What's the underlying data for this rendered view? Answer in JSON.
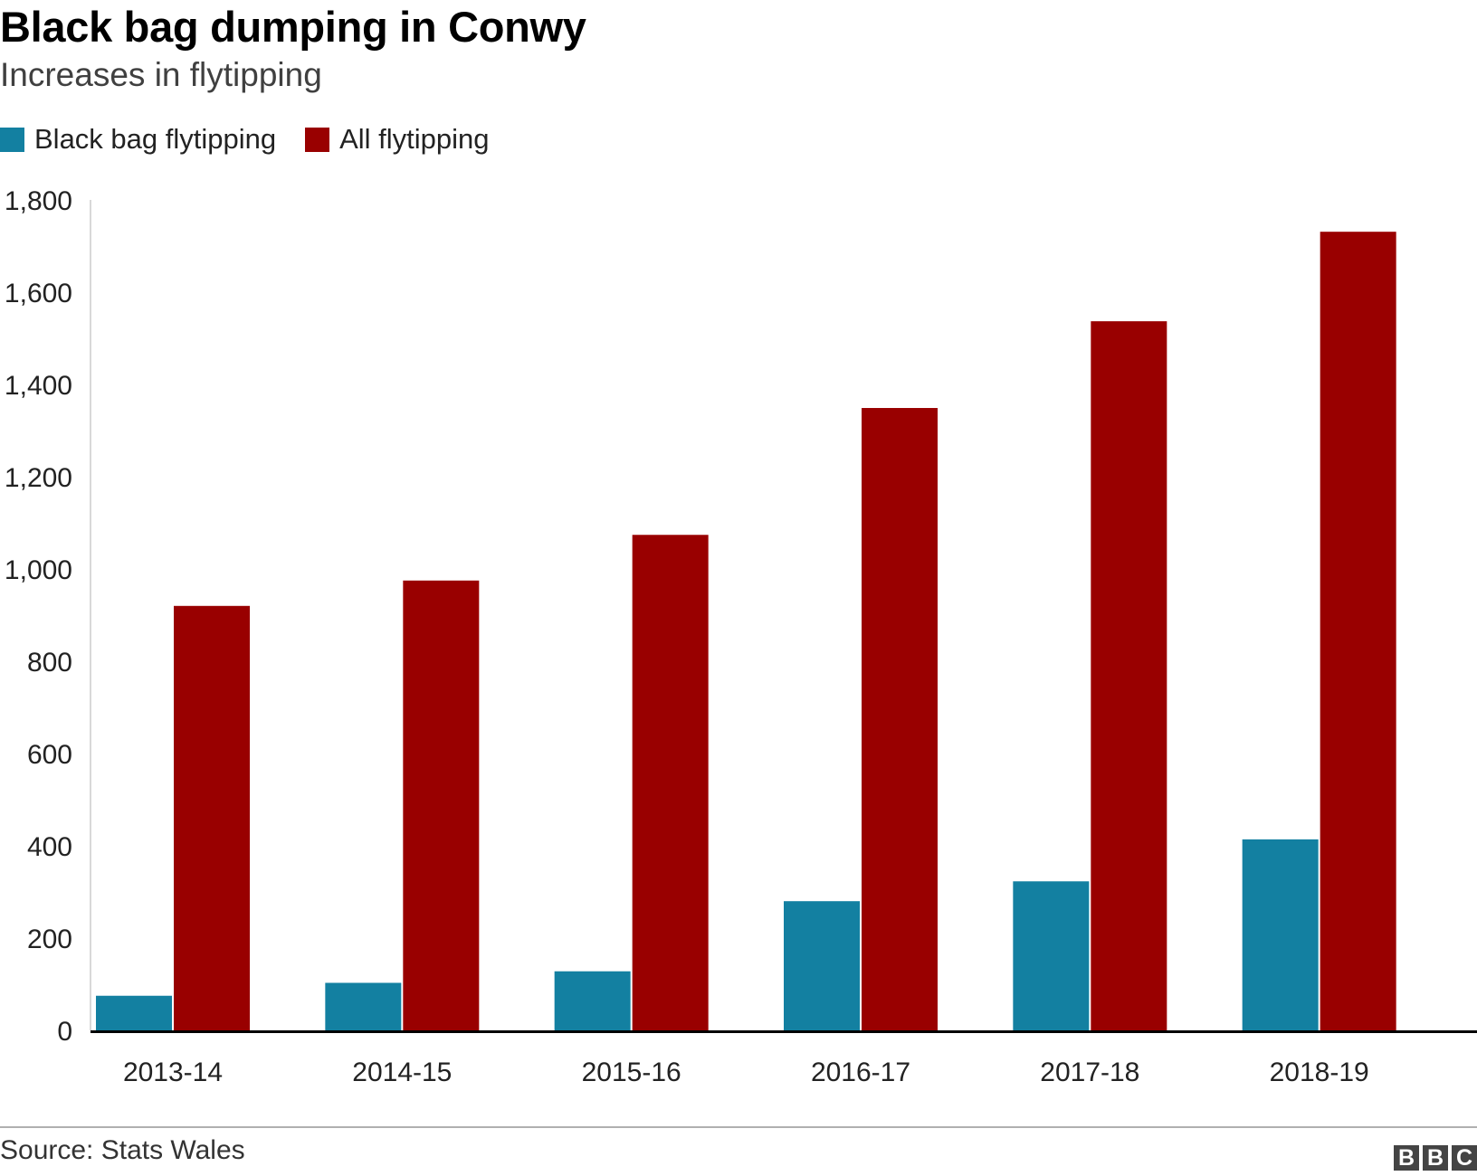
{
  "header": {
    "title": "Black bag dumping in Conwy",
    "subtitle": "Increases in flytipping"
  },
  "footer": {
    "source": "Source: Stats Wales",
    "logo_letters": [
      "B",
      "B",
      "C"
    ]
  },
  "colors": {
    "black_bag": "#1380A1",
    "all": "#990000",
    "axis": "#000000"
  },
  "chart_data": {
    "type": "bar",
    "categories": [
      "2013-14",
      "2014-15",
      "2015-16",
      "2016-17",
      "2017-18",
      "2018-19"
    ],
    "series": [
      {
        "name": "Black bag flytipping",
        "values": [
          75,
          103,
          128,
          280,
          323,
          414
        ]
      },
      {
        "name": "All flytipping",
        "values": [
          920,
          975,
          1074,
          1349,
          1537,
          1731
        ]
      }
    ],
    "yticks": [
      "0",
      "200",
      "400",
      "600",
      "800",
      "1,000",
      "1,200",
      "1,400",
      "1,600",
      "1,800"
    ],
    "ylim": [
      0,
      1800
    ],
    "legend_position": "top-left",
    "grid": false
  }
}
